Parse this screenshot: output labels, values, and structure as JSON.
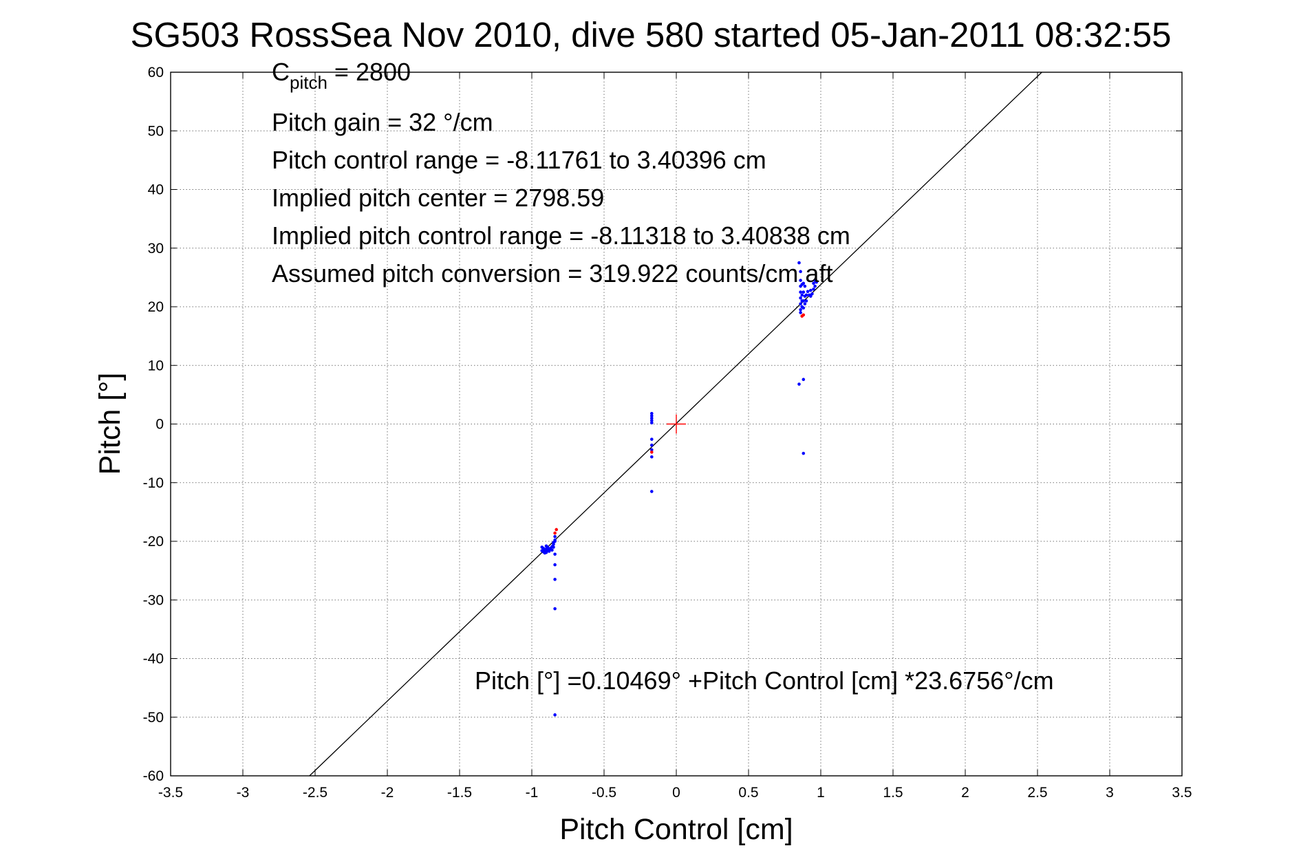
{
  "chart_data": {
    "type": "scatter",
    "title": "SG503 RossSea Nov 2010, dive 580 started 05-Jan-2011 08:32:55",
    "xlabel": "Pitch Control [cm]",
    "ylabel": "Pitch [°]",
    "xlim": [
      -3.5,
      3.5
    ],
    "ylim": [
      -60,
      60
    ],
    "xticks": [
      -3.5,
      -3,
      -2.5,
      -2,
      -1.5,
      -1,
      -0.5,
      0,
      0.5,
      1,
      1.5,
      2,
      2.5,
      3,
      3.5
    ],
    "yticks": [
      -60,
      -50,
      -40,
      -30,
      -20,
      -10,
      0,
      10,
      20,
      30,
      40,
      50,
      60
    ],
    "grid": true,
    "colors": {
      "points": "#0000ff",
      "outliers": "#ff0000",
      "fit_line": "#000000",
      "center_marker": "#ff0000"
    },
    "fit_line": {
      "intercept": 0.10469,
      "slope": 23.6756
    },
    "center_marker": {
      "x": 0,
      "y": 0,
      "symbol": "+"
    },
    "annotations": {
      "c_pitch_main": "C",
      "c_pitch_sub": "pitch",
      "c_pitch_value": " = 2800",
      "lines": [
        "Pitch gain = 32 °/cm",
        "Pitch control range = -8.11761 to 3.40396 cm",
        "Implied pitch center = 2798.59",
        "Implied pitch control range = -8.11318 to 3.40838 cm",
        "Assumed pitch conversion = 319.922 counts/cm aft"
      ],
      "fit_equation": "Pitch [°] =0.10469° +Pitch Control [cm] *23.6756°/cm"
    },
    "series": [
      {
        "color": "#0000ff",
        "points": [
          [
            -0.93,
            -21.0
          ],
          [
            -0.93,
            -21.6
          ],
          [
            -0.92,
            -21.8
          ],
          [
            -0.92,
            -21.2
          ],
          [
            -0.91,
            -21.5
          ],
          [
            -0.91,
            -22.0
          ],
          [
            -0.9,
            -21.3
          ],
          [
            -0.9,
            -21.9
          ],
          [
            -0.9,
            -20.8
          ],
          [
            -0.89,
            -21.6
          ],
          [
            -0.89,
            -21.0
          ],
          [
            -0.88,
            -21.4
          ],
          [
            -0.88,
            -21.7
          ],
          [
            -0.87,
            -21.2
          ],
          [
            -0.86,
            -21.5
          ],
          [
            -0.86,
            -20.9
          ],
          [
            -0.85,
            -20.5
          ],
          [
            -0.85,
            -21.0
          ],
          [
            -0.85,
            -20.2
          ],
          [
            -0.84,
            -19.8
          ],
          [
            -0.84,
            -20.0
          ],
          [
            -0.84,
            -19.2
          ],
          [
            -0.84,
            -22.2
          ],
          [
            -0.84,
            -24.0
          ],
          [
            -0.84,
            -26.5
          ],
          [
            -0.84,
            -31.5
          ],
          [
            -0.84,
            -49.6
          ],
          [
            -0.17,
            1.8
          ],
          [
            -0.17,
            1.4
          ],
          [
            -0.17,
            1.0
          ],
          [
            -0.17,
            0.6
          ],
          [
            -0.17,
            0.2
          ],
          [
            -0.17,
            -2.6
          ],
          [
            -0.17,
            -3.6
          ],
          [
            -0.17,
            -4.4
          ],
          [
            -0.17,
            -5.6
          ],
          [
            -0.17,
            -11.5
          ],
          [
            0.85,
            27.5
          ],
          [
            0.86,
            26.0
          ],
          [
            0.86,
            24.5
          ],
          [
            0.86,
            23.5
          ],
          [
            0.86,
            22.5
          ],
          [
            0.86,
            21.5
          ],
          [
            0.86,
            20.5
          ],
          [
            0.86,
            19.5
          ],
          [
            0.86,
            19.0
          ],
          [
            0.87,
            23.8
          ],
          [
            0.87,
            22.0
          ],
          [
            0.87,
            21.0
          ],
          [
            0.87,
            20.0
          ],
          [
            0.88,
            24.0
          ],
          [
            0.88,
            22.5
          ],
          [
            0.88,
            21.0
          ],
          [
            0.88,
            19.8
          ],
          [
            0.89,
            23.5
          ],
          [
            0.89,
            21.8
          ],
          [
            0.89,
            20.5
          ],
          [
            0.9,
            22.0
          ],
          [
            0.9,
            21.0
          ],
          [
            0.91,
            22.6
          ],
          [
            0.92,
            22.0
          ],
          [
            0.93,
            21.8
          ],
          [
            0.93,
            22.8
          ],
          [
            0.94,
            22.2
          ],
          [
            0.95,
            23.0
          ],
          [
            0.95,
            24.0
          ],
          [
            0.96,
            24.5
          ],
          [
            0.96,
            23.5
          ],
          [
            0.97,
            24.2
          ],
          [
            0.85,
            6.8
          ],
          [
            0.88,
            7.6
          ],
          [
            0.88,
            -5.0
          ]
        ]
      },
      {
        "color": "#ff0000",
        "points": [
          [
            -0.83,
            -18.0
          ],
          [
            -0.84,
            -18.6
          ],
          [
            -0.17,
            -4.8
          ],
          [
            0.87,
            18.4
          ],
          [
            0.88,
            18.6
          ]
        ]
      }
    ]
  }
}
